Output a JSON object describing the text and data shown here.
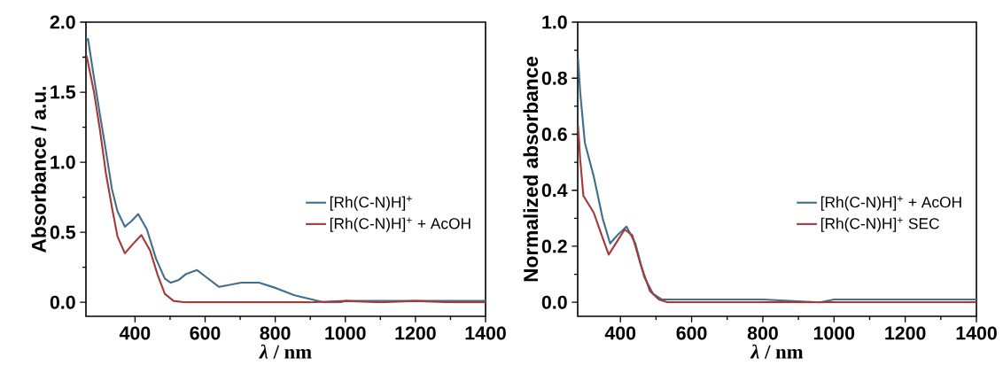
{
  "chart_data": [
    {
      "type": "line",
      "xlabel": "*λ* / nm",
      "ylabel": "Absorbance / a.u.",
      "xlim": [
        260,
        1400
      ],
      "ylim": [
        -0.1,
        2.0
      ],
      "xticks": [
        400,
        600,
        800,
        1000,
        1200,
        1400
      ],
      "yticks": [
        {
          "value": 0,
          "label": "0.0"
        },
        {
          "value": 0.5,
          "label": "0.5"
        },
        {
          "value": 1.0,
          "label": "1.0"
        },
        {
          "value": 1.5,
          "label": "1.5"
        },
        {
          "value": 2.0,
          "label": "2.0"
        }
      ],
      "legend": "right",
      "grid": false,
      "marker": "none",
      "line_style": "solid",
      "series": [
        {
          "name": "[Rh(C-N)H]$^{+}$",
          "color": "#41708f",
          "x": [
            262,
            266,
            280,
            300,
            317,
            334,
            350,
            371,
            390,
            409,
            434,
            460,
            485,
            502,
            525,
            544,
            577,
            603,
            640,
            703,
            754,
            804,
            855,
            905,
            939,
            985,
            1000,
            1100,
            1200,
            1300,
            1400
          ],
          "values": [
            1.87,
            1.88,
            1.65,
            1.34,
            1.08,
            0.81,
            0.65,
            0.54,
            0.58,
            0.63,
            0.52,
            0.31,
            0.17,
            0.14,
            0.16,
            0.2,
            0.23,
            0.18,
            0.11,
            0.14,
            0.14,
            0.1,
            0.05,
            0.02,
            0.0,
            0.0,
            0.01,
            0.01,
            0.01,
            0.01,
            0.01
          ]
        },
        {
          "name": "[Rh(C-N)H]$^{+}$ + AcOH",
          "color": "#a33b3b",
          "x": [
            262,
            283,
            300,
            317,
            334,
            350,
            371,
            392,
            418,
            443,
            464,
            485,
            510,
            544,
            700,
            900,
            1000,
            1100,
            1200,
            1300,
            1400
          ],
          "values": [
            1.76,
            1.5,
            1.23,
            0.92,
            0.68,
            0.47,
            0.35,
            0.41,
            0.48,
            0.37,
            0.2,
            0.06,
            0.01,
            0.0,
            0.0,
            0.0,
            0.01,
            0.0,
            0.01,
            0.0,
            0.0
          ]
        }
      ]
    },
    {
      "type": "line",
      "xlabel": "*λ* / nm",
      "ylabel": "Normalized absorbance",
      "xlim": [
        280,
        1400
      ],
      "ylim": [
        -0.05,
        1.0
      ],
      "xticks": [
        400,
        600,
        800,
        1000,
        1200,
        1400
      ],
      "yticks": [
        {
          "value": 0,
          "label": "0.0"
        },
        {
          "value": 0.2,
          "label": "0.2"
        },
        {
          "value": 0.4,
          "label": "0.4"
        },
        {
          "value": 0.6,
          "label": "0.6"
        },
        {
          "value": 0.8,
          "label": "0.8"
        },
        {
          "value": 1.0,
          "label": "1.0"
        }
      ],
      "legend": "right",
      "grid": false,
      "marker": "none",
      "line_style": "solid",
      "series": [
        {
          "name": "[Rh(C-N)H]$^{+}$ + AcOH",
          "color": "#41708f",
          "x": [
            281,
            287,
            300,
            325,
            350,
            371,
            392,
            417,
            442,
            467,
            492,
            517,
            600,
            800,
            960,
            1000,
            1100,
            1200,
            1300,
            1400
          ],
          "values": [
            0.87,
            0.75,
            0.57,
            0.45,
            0.3,
            0.21,
            0.24,
            0.27,
            0.21,
            0.09,
            0.03,
            0.01,
            0.01,
            0.01,
            0.0,
            0.01,
            0.01,
            0.01,
            0.01,
            0.01
          ]
        },
        {
          "name": "[Rh(C-N)H]$^{+}$ SEC",
          "color": "#a33b3b",
          "x": [
            281,
            287,
            296,
            325,
            350,
            367,
            392,
            412,
            433,
            458,
            483,
            508,
            533,
            800,
            1000,
            1200,
            1400
          ],
          "values": [
            0.63,
            0.51,
            0.38,
            0.32,
            0.23,
            0.17,
            0.22,
            0.26,
            0.24,
            0.13,
            0.04,
            0.01,
            0.0,
            0.0,
            0.0,
            0.0,
            0.0
          ]
        }
      ]
    }
  ]
}
